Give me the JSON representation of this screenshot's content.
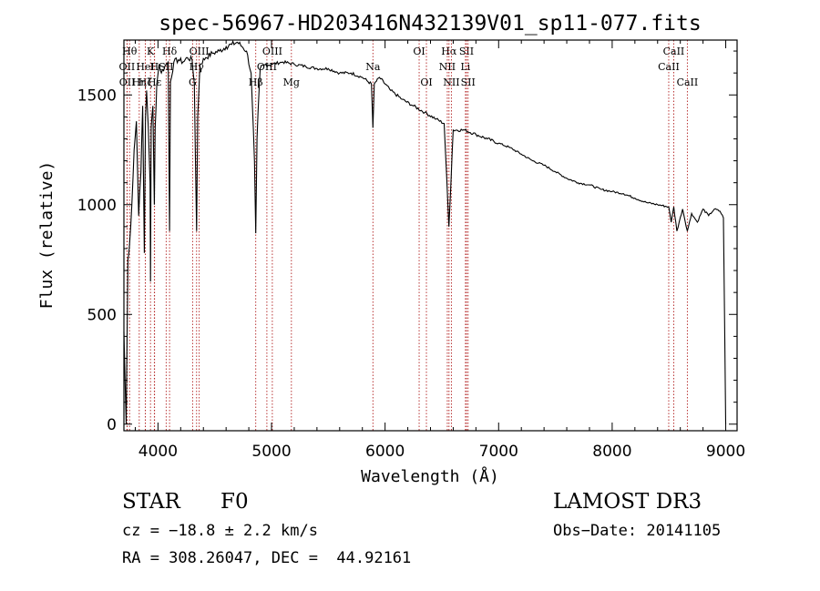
{
  "chart_data": {
    "type": "line",
    "title": "spec-56967-HD203416N432139V01_sp11-077.fits",
    "xlabel": "Wavelength (Å)",
    "ylabel": "Flux (relative)",
    "xlim": [
      3700,
      9100
    ],
    "ylim": [
      -30,
      1750
    ],
    "xticks": [
      4000,
      5000,
      6000,
      7000,
      8000,
      9000
    ],
    "yticks": [
      0,
      500,
      1000,
      1500
    ],
    "series": [
      {
        "name": "flux",
        "x": [
          3700,
          3720,
          3735,
          3750,
          3770,
          3790,
          3810,
          3830,
          3850,
          3865,
          3880,
          3890,
          3900,
          3915,
          3930,
          3934,
          3940,
          3955,
          3968,
          3975,
          3990,
          4010,
          4030,
          4060,
          4090,
          4102,
          4110,
          4140,
          4180,
          4220,
          4260,
          4300,
          4320,
          4340,
          4350,
          4370,
          4420,
          4480,
          4540,
          4600,
          4650,
          4700,
          4740,
          4780,
          4820,
          4850,
          4861,
          4872,
          4900,
          4950,
          5000,
          5100,
          5200,
          5300,
          5400,
          5500,
          5600,
          5700,
          5800,
          5880,
          5893,
          5905,
          5950,
          6050,
          6150,
          6250,
          6350,
          6450,
          6520,
          6562,
          6600,
          6700,
          6800,
          6900,
          7000,
          7100,
          7200,
          7300,
          7400,
          7500,
          7600,
          7700,
          7800,
          7900,
          8000,
          8100,
          8200,
          8300,
          8400,
          8498,
          8520,
          8542,
          8570,
          8620,
          8662,
          8700,
          8750,
          8800,
          8850,
          8900,
          8950,
          8980,
          9000
        ],
        "y": [
          420,
          0,
          750,
          820,
          1000,
          1250,
          1380,
          950,
          1150,
          1450,
          780,
          1400,
          1520,
          1350,
          1100,
          650,
          1350,
          1450,
          1000,
          1350,
          1550,
          1640,
          1600,
          1630,
          1650,
          880,
          1560,
          1650,
          1660,
          1650,
          1670,
          1660,
          1550,
          880,
          1400,
          1640,
          1670,
          1690,
          1700,
          1720,
          1730,
          1740,
          1720,
          1700,
          1600,
          1200,
          870,
          1300,
          1620,
          1640,
          1640,
          1650,
          1640,
          1630,
          1620,
          1620,
          1600,
          1600,
          1580,
          1550,
          1350,
          1550,
          1580,
          1520,
          1480,
          1450,
          1420,
          1390,
          1370,
          900,
          1340,
          1340,
          1320,
          1300,
          1280,
          1260,
          1230,
          1200,
          1180,
          1150,
          1120,
          1100,
          1090,
          1070,
          1060,
          1050,
          1030,
          1010,
          1000,
          990,
          920,
          990,
          880,
          980,
          880,
          960,
          920,
          980,
          950,
          980,
          970,
          940,
          0
        ]
      }
    ],
    "lines": [
      {
        "label": "Hθ",
        "wavelength": 3750,
        "row": 1
      },
      {
        "label": "OII",
        "wavelength": 3727,
        "row": 2
      },
      {
        "label": "OII",
        "wavelength": 3729,
        "row": 3
      },
      {
        "label": "Hη",
        "wavelength": 3835,
        "row": 3
      },
      {
        "label": "Hζ",
        "wavelength": 3889,
        "row": 3
      },
      {
        "label": "K",
        "wavelength": 3934,
        "row": 1
      },
      {
        "label": "HeI",
        "wavelength": 3889,
        "row": 2
      },
      {
        "label": "H",
        "wavelength": 3968,
        "row": 2
      },
      {
        "label": "Hδ",
        "wavelength": 4102,
        "row": 1
      },
      {
        "label": "SII",
        "wavelength": 4072,
        "row": 2
      },
      {
        "label": "Hε",
        "wavelength": 3970,
        "row": 3
      },
      {
        "label": "G",
        "wavelength": 4305,
        "row": 3
      },
      {
        "label": "OIII",
        "wavelength": 4363,
        "row": 1
      },
      {
        "label": "Hγ",
        "wavelength": 4340,
        "row": 2
      },
      {
        "label": "Hβ",
        "wavelength": 4861,
        "row": 3
      },
      {
        "label": "OIII",
        "wavelength": 5007,
        "row": 1
      },
      {
        "label": "OIII",
        "wavelength": 4959,
        "row": 2
      },
      {
        "label": "Mg",
        "wavelength": 5175,
        "row": 3
      },
      {
        "label": "Na",
        "wavelength": 5893,
        "row": 2
      },
      {
        "label": "OI",
        "wavelength": 6300,
        "row": 1
      },
      {
        "label": "OI",
        "wavelength": 6364,
        "row": 3
      },
      {
        "label": "Hα",
        "wavelength": 6563,
        "row": 1
      },
      {
        "label": "NII",
        "wavelength": 6548,
        "row": 2
      },
      {
        "label": "NII",
        "wavelength": 6584,
        "row": 3
      },
      {
        "label": "SII",
        "wavelength": 6717,
        "row": 1
      },
      {
        "label": "Li",
        "wavelength": 6708,
        "row": 2
      },
      {
        "label": "SII",
        "wavelength": 6731,
        "row": 3
      },
      {
        "label": "CaII",
        "wavelength": 8542,
        "row": 1
      },
      {
        "label": "CaII",
        "wavelength": 8498,
        "row": 2
      },
      {
        "label": "CaII",
        "wavelength": 8662,
        "row": 3
      }
    ]
  },
  "info": {
    "class": "STAR",
    "subclass": "F0",
    "survey": "LAMOST DR3",
    "cz": "cz = −18.8 ± 2.2 km/s",
    "obs_date": "Obs−Date: 20141105",
    "coords": "RA = 308.26047, DEC =  44.92161"
  },
  "colors": {
    "spectrum": "#000000",
    "line_marker": "#b22222",
    "axis": "#000000",
    "background": "#ffffff"
  }
}
